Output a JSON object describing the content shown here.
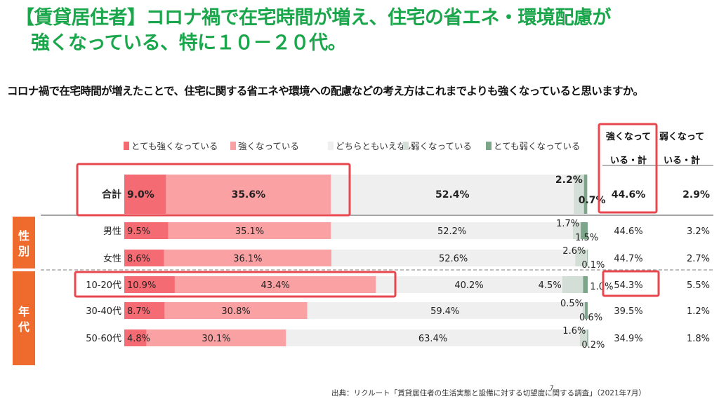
{
  "title_line1": "【賃貸居住者】コロナ禍で在宅時間が増え、住宅の省エネ・環境配慮が",
  "title_line2": "強くなっている、特に１０－２０代。",
  "question": "コロナ禍で在宅時間が増えたことで、住宅に関する省エネや環境への配慮などの考え方はこれまでよりも強くなっていると思いますか。",
  "source": "出典：リクルート「賃貸居住者の生活実態と設備に対する切望度に関する調査」（2021年7月）",
  "page_number": "7",
  "colors": {
    "very_strong": "#f46b73",
    "strong": "#f9a1a3",
    "neutral": "#efefef",
    "weak": "#d3ded6",
    "very_weak": "#7da58a",
    "highlight": "#e8474f",
    "group_label_bg": "#ef6b2d",
    "title": "#1aa64a"
  },
  "chart_data": {
    "type": "bar",
    "orientation": "horizontal",
    "stacked": true,
    "xlim": [
      0,
      100
    ],
    "unit": "%",
    "legend_placement": "top",
    "series": [
      {
        "name": "とても強くなっている",
        "values": [
          9.0,
          9.5,
          8.6,
          10.9,
          8.7,
          4.8
        ]
      },
      {
        "name": "強くなっている",
        "values": [
          35.6,
          35.1,
          36.1,
          43.4,
          30.8,
          30.1
        ]
      },
      {
        "name": "どちらともいえない",
        "values": [
          52.4,
          52.2,
          52.6,
          40.2,
          59.4,
          63.4
        ]
      },
      {
        "name": "弱くなっている",
        "values": [
          2.2,
          1.7,
          2.6,
          4.5,
          0.5,
          1.6
        ]
      },
      {
        "name": "とても弱くなっている",
        "values": [
          0.7,
          1.5,
          0.1,
          1.0,
          0.6,
          0.2
        ]
      }
    ],
    "categories": [
      "合計",
      "男性",
      "女性",
      "10-20代",
      "30-40代",
      "50-60代"
    ],
    "groups": [
      {
        "label": "性別",
        "categories": [
          "男性",
          "女性"
        ]
      },
      {
        "label": "年代",
        "categories": [
          "10-20代",
          "30-40代",
          "50-60代"
        ]
      }
    ],
    "summary_columns": [
      {
        "header": "強くなっている・計",
        "header_l1": "強くなって",
        "header_l2": "いる・計",
        "values": [
          "44.6%",
          "44.6%",
          "44.7%",
          "54.3%",
          "39.5%",
          "34.9%"
        ]
      },
      {
        "header": "弱くなっている・計",
        "header_l1": "弱くなって",
        "header_l2": "いる・計",
        "values": [
          "2.9%",
          "3.2%",
          "2.7%",
          "5.5%",
          "1.2%",
          "1.8%"
        ]
      }
    ],
    "highlighted": [
      "合計",
      "10-20代",
      "強くなっている・計",
      "10-20代 強くなっている・計"
    ]
  }
}
